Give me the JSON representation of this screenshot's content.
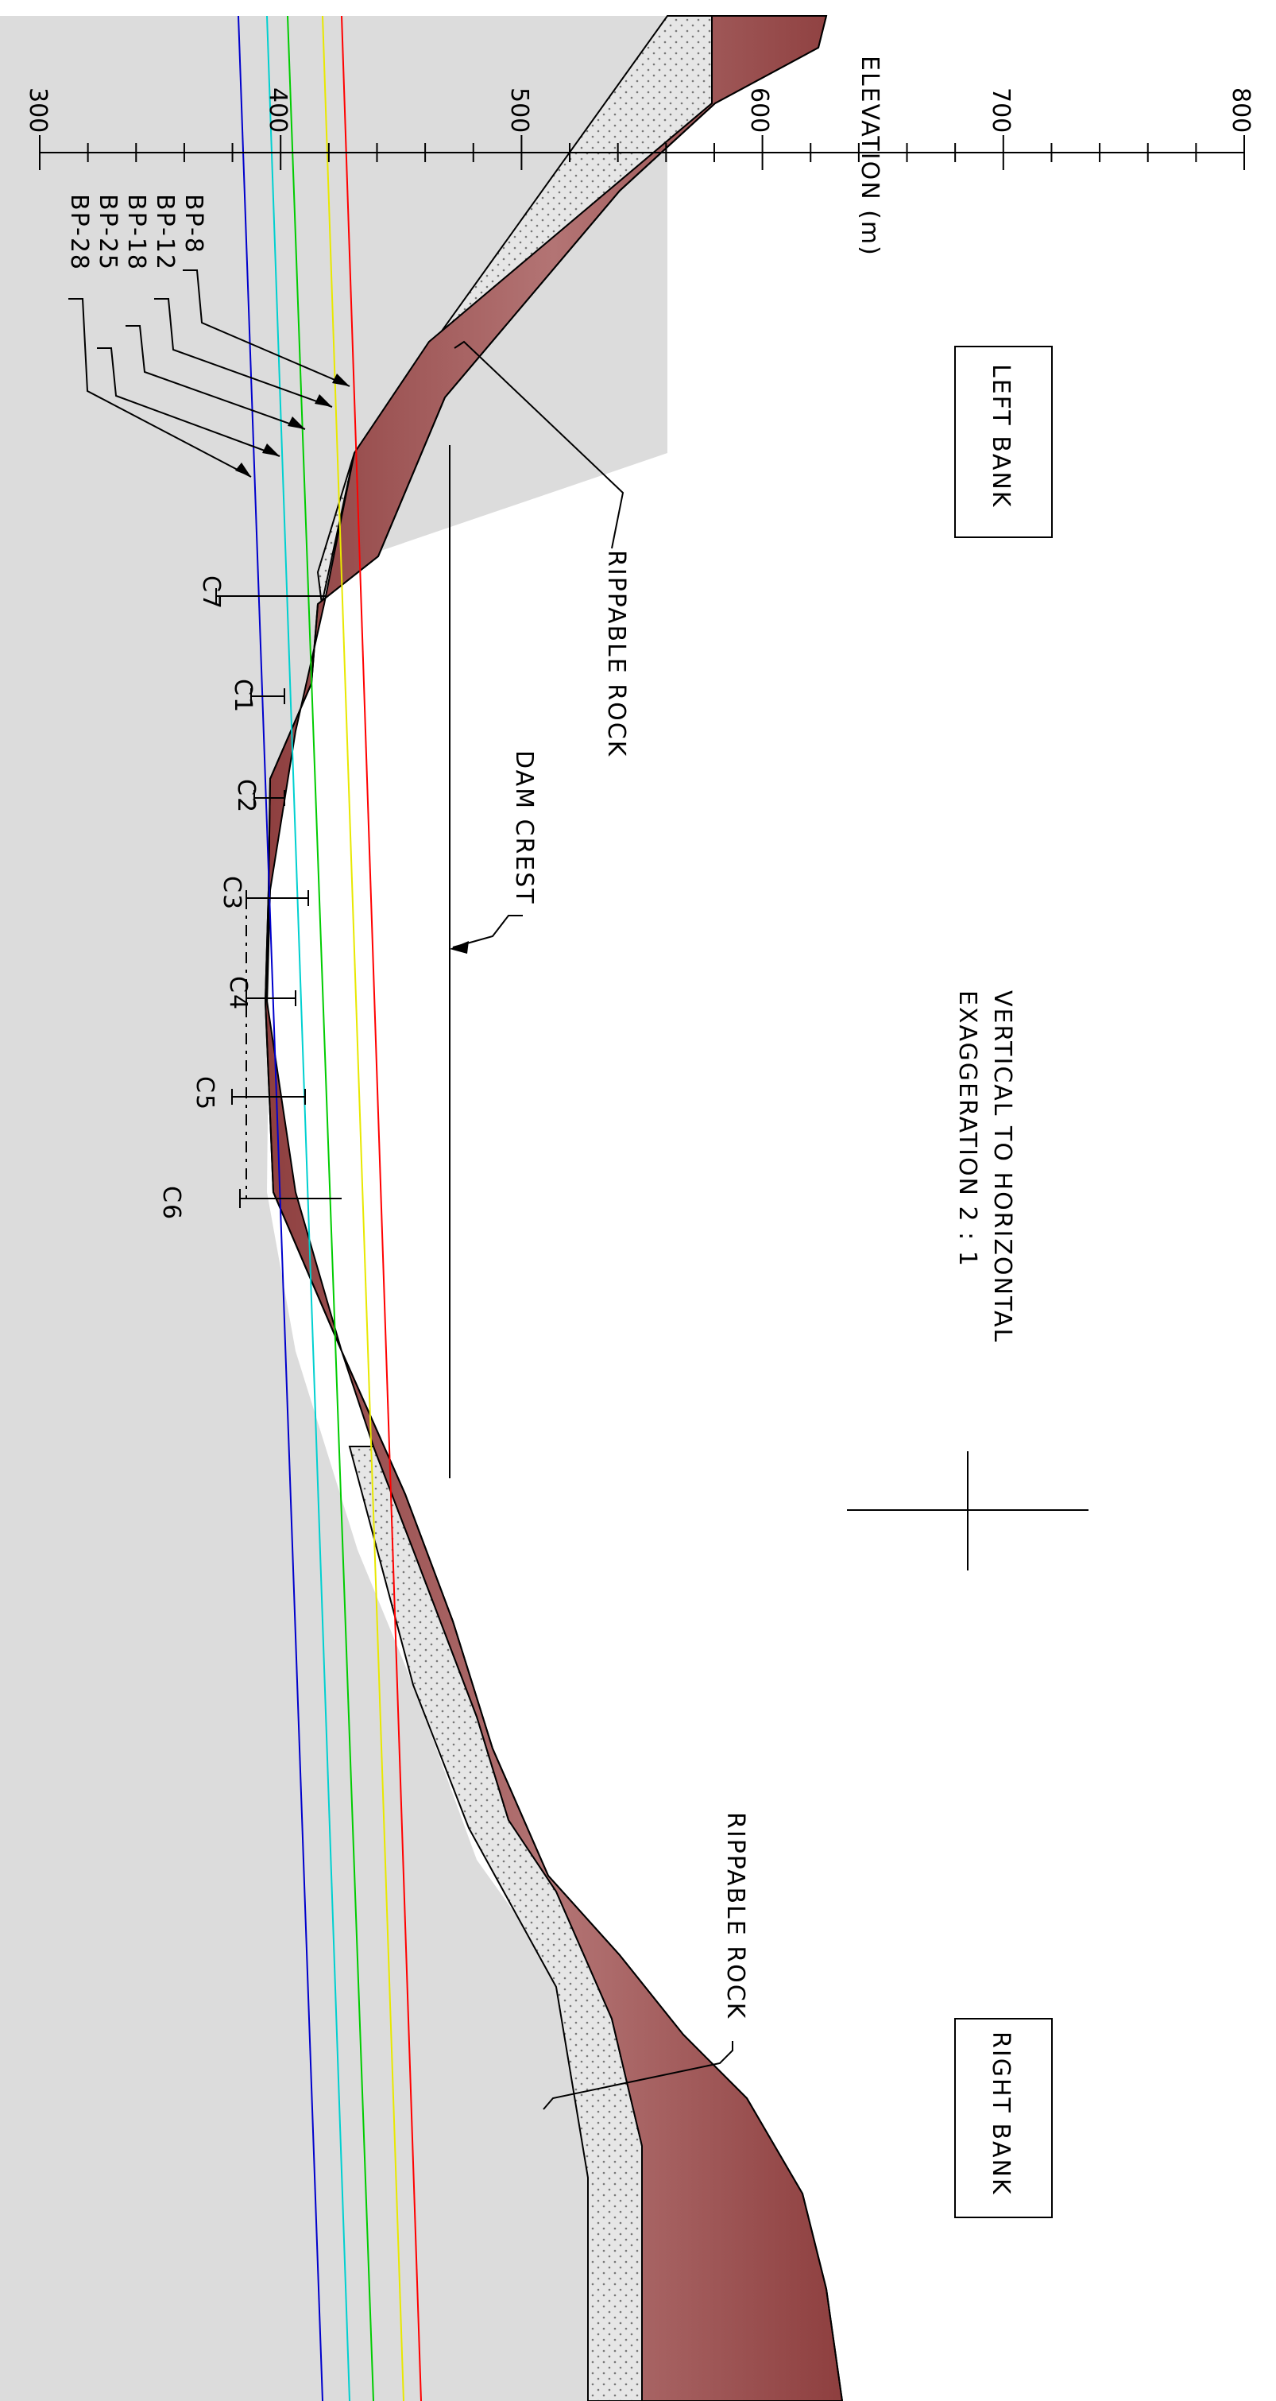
{
  "axis": {
    "title": "ELEVATION (m)",
    "ticks": [
      "300",
      "400",
      "500",
      "600",
      "700",
      "800"
    ]
  },
  "banks": {
    "left": "LEFT BANK",
    "right": "RIGHT BANK"
  },
  "labels": {
    "rippable_upper": "RIPPABLE ROCK",
    "rippable_lower": "RIPPABLE ROCK",
    "dam_crest": "DAM CREST",
    "exaggeration_line1": "VERTICAL TO HORIZONTAL",
    "exaggeration_line2": "EXAGGERATION 2 : 1"
  },
  "boreholes": [
    {
      "name": "BP-8",
      "color": "#ff0000"
    },
    {
      "name": "BP-12",
      "color": "#ffff00"
    },
    {
      "name": "BP-18",
      "color": "#00cc00"
    },
    {
      "name": "BP-25",
      "color": "#00e5e5"
    },
    {
      "name": "BP-28",
      "color": "#0000cc"
    }
  ],
  "cores": [
    "C7",
    "C1",
    "C2",
    "C3",
    "C4",
    "C5",
    "C6"
  ],
  "colors": {
    "rock": "#9b4a4a",
    "rock_light": "#b87a7a",
    "fill_grey": "#dcdcdc",
    "rippable": "#e6e6e6"
  }
}
